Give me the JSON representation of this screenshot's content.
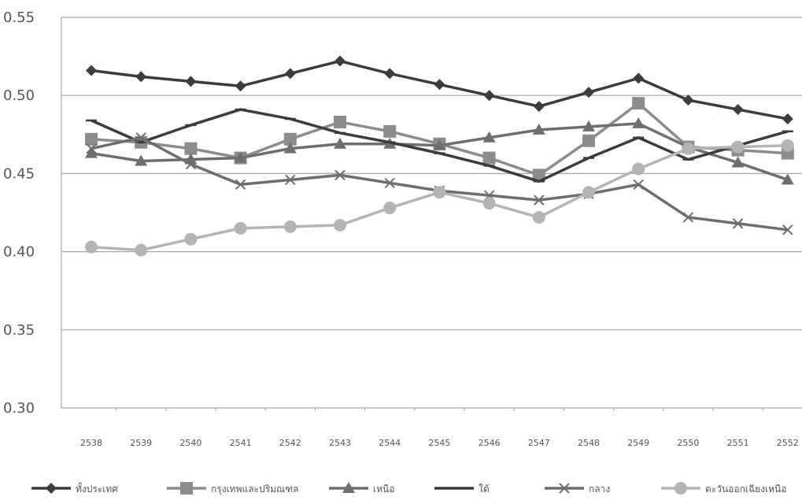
{
  "chart_data": {
    "type": "line",
    "categories": [
      "2538",
      "2539",
      "2540",
      "2541",
      "2542",
      "2543",
      "2544",
      "2545",
      "2546",
      "2547",
      "2548",
      "2549",
      "2550",
      "2551",
      "2552"
    ],
    "ylim": [
      0.3,
      0.55
    ],
    "yticks": [
      "0.30",
      "0.35",
      "0.40",
      "0.45",
      "0.50",
      "0.55"
    ],
    "grid": true,
    "legend_position": "bottom",
    "series": [
      {
        "name": "ทั้งประเทศ",
        "color": "#3c3c3c",
        "marker": "diamond",
        "values": [
          0.516,
          0.512,
          0.509,
          0.506,
          0.514,
          0.522,
          0.514,
          0.507,
          0.5,
          0.493,
          0.502,
          0.511,
          0.497,
          0.491,
          0.485
        ]
      },
      {
        "name": "กรุงเทพและปริมณฑล",
        "color": "#8c8c8c",
        "marker": "square",
        "values": [
          0.472,
          0.47,
          0.466,
          0.46,
          0.472,
          0.483,
          0.477,
          0.469,
          0.46,
          0.449,
          0.471,
          0.495,
          0.467,
          0.465,
          0.463
        ]
      },
      {
        "name": "เหนือ",
        "color": "#6e6e6e",
        "marker": "triangle",
        "values": [
          0.463,
          0.458,
          0.459,
          0.46,
          0.466,
          0.469,
          0.469,
          0.468,
          0.473,
          0.478,
          0.48,
          0.482,
          0.467,
          0.457,
          0.446
        ]
      },
      {
        "name": "ใต้",
        "color": "#3c3c3c",
        "marker": "dash",
        "values": [
          0.484,
          0.47,
          0.481,
          0.491,
          0.485,
          0.476,
          0.47,
          0.463,
          0.455,
          0.445,
          0.46,
          0.473,
          0.459,
          0.468,
          0.477
        ]
      },
      {
        "name": "กลาง",
        "color": "#6e6e6e",
        "marker": "x",
        "values": [
          0.466,
          0.473,
          0.456,
          0.443,
          0.446,
          0.449,
          0.444,
          0.439,
          0.436,
          0.433,
          0.437,
          0.443,
          0.422,
          0.418,
          0.414
        ]
      },
      {
        "name": "ตะวันออกเฉียงเหนือ",
        "color": "#b4b4b4",
        "marker": "circle",
        "values": [
          0.403,
          0.401,
          0.408,
          0.415,
          0.416,
          0.417,
          0.428,
          0.438,
          0.431,
          0.422,
          0.438,
          0.453,
          0.466,
          0.467,
          0.468
        ]
      }
    ]
  }
}
